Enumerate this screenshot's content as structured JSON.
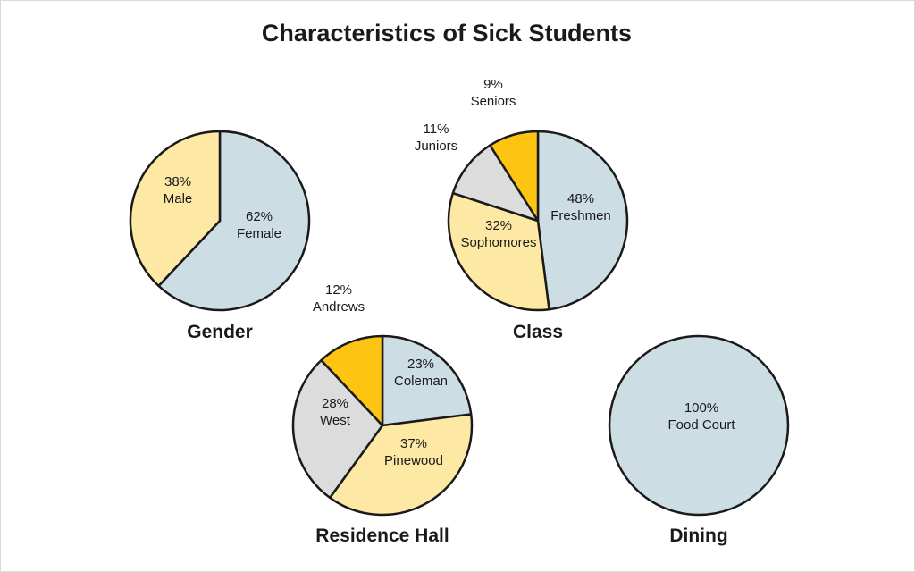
{
  "title": "Characteristics of Sick Students",
  "colors": {
    "blue": "#cddde4",
    "yellow": "#fde8a4",
    "gold": "#fdc512",
    "gray": "#dcdcdc",
    "stroke": "#1a1a1a"
  },
  "chart_data": [
    {
      "type": "pie",
      "title": "Gender",
      "slices": [
        {
          "value": 62,
          "pct": "62%",
          "name": "Female",
          "color": "blue"
        },
        {
          "value": 38,
          "pct": "38%",
          "name": "Male",
          "color": "yellow"
        }
      ]
    },
    {
      "type": "pie",
      "title": "Class",
      "slices": [
        {
          "value": 48,
          "pct": "48%",
          "name": "Freshmen",
          "color": "blue"
        },
        {
          "value": 32,
          "pct": "32%",
          "name": "Sophomores",
          "color": "yellow"
        },
        {
          "value": 11,
          "pct": "11%",
          "name": "Juniors",
          "color": "gray"
        },
        {
          "value": 9,
          "pct": "9%",
          "name": "Seniors",
          "color": "gold"
        }
      ]
    },
    {
      "type": "pie",
      "title": "Residence Hall",
      "slices": [
        {
          "value": 23,
          "pct": "23%",
          "name": "Coleman",
          "color": "blue"
        },
        {
          "value": 37,
          "pct": "37%",
          "name": "Pinewood",
          "color": "yellow"
        },
        {
          "value": 28,
          "pct": "28%",
          "name": "West",
          "color": "gray"
        },
        {
          "value": 12,
          "pct": "12%",
          "name": "Andrews",
          "color": "gold"
        }
      ]
    },
    {
      "type": "pie",
      "title": "Dining",
      "slices": [
        {
          "value": 100,
          "pct": "100%",
          "name": "Food Court",
          "color": "blue"
        }
      ]
    }
  ]
}
